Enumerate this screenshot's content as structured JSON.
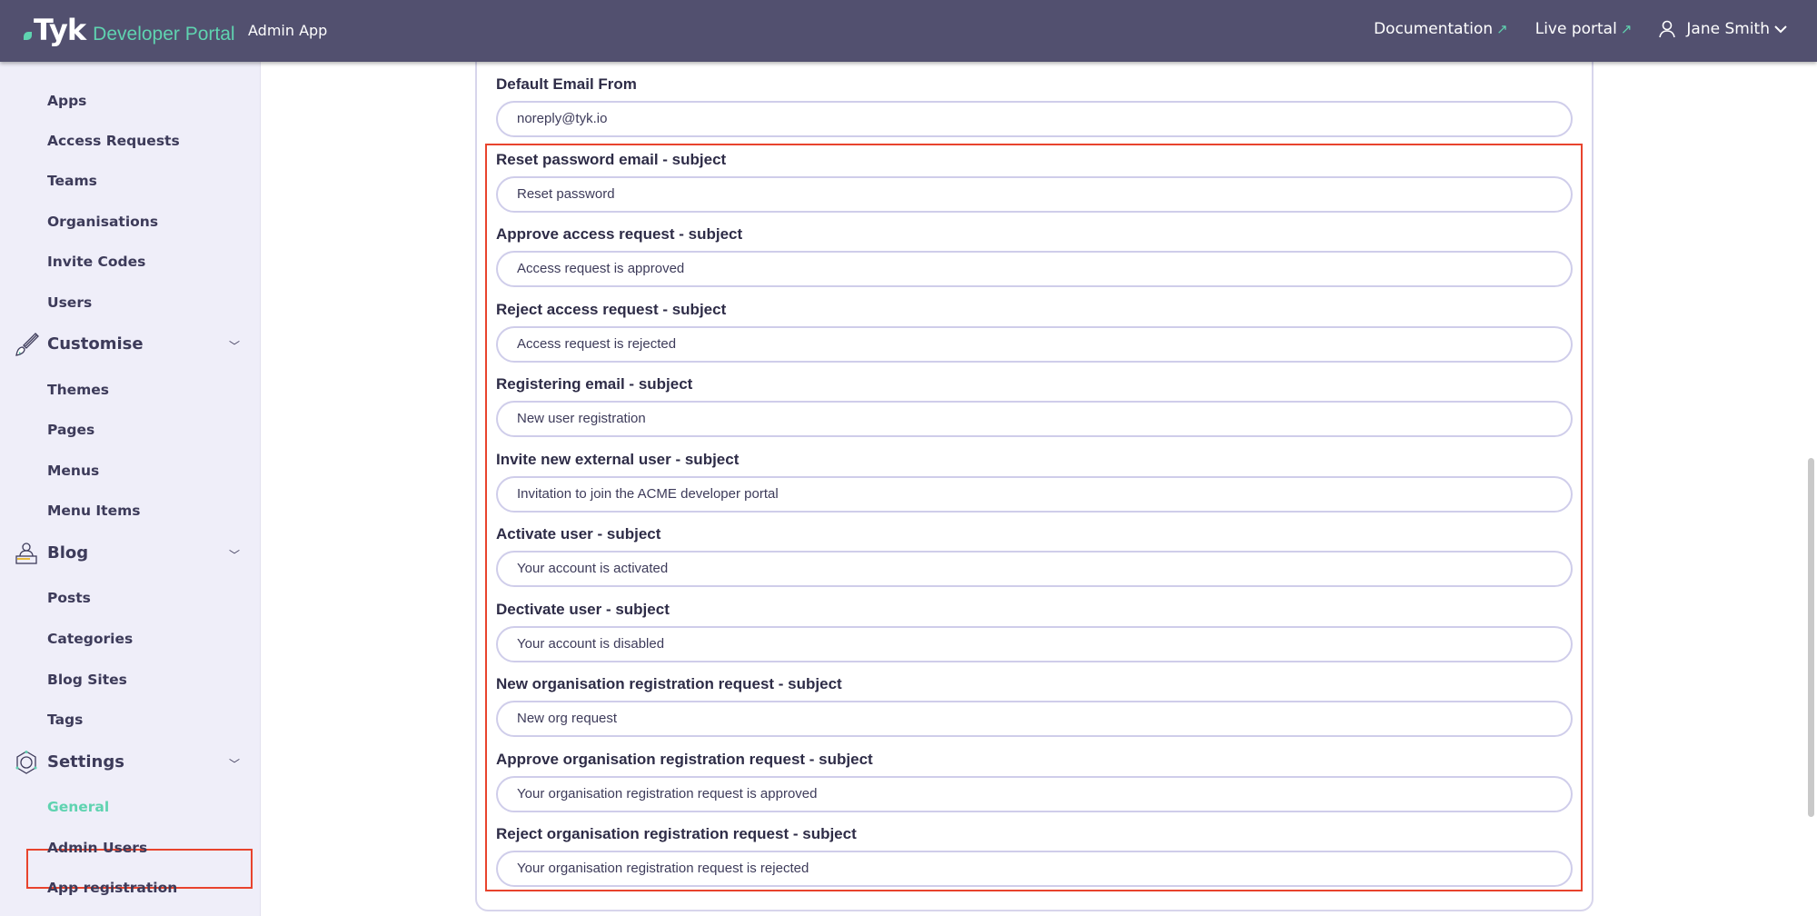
{
  "header": {
    "logo_text": "Tyk",
    "product": "Developer Portal",
    "app": "Admin App",
    "nav": [
      {
        "label": "Documentation",
        "icon": "external-link-icon"
      },
      {
        "label": "Live portal",
        "icon": "external-link-icon"
      }
    ],
    "user": "Jane Smith"
  },
  "sidebar": {
    "items_top": [
      "Apps",
      "Access Requests",
      "Teams",
      "Organisations",
      "Invite Codes",
      "Users"
    ],
    "customise": {
      "label": "Customise",
      "icon": "paintbrush-icon",
      "items": [
        "Themes",
        "Pages",
        "Menus",
        "Menu Items"
      ]
    },
    "blog": {
      "label": "Blog",
      "icon": "writer-icon",
      "items": [
        "Posts",
        "Categories",
        "Blog Sites",
        "Tags"
      ]
    },
    "settings": {
      "label": "Settings",
      "icon": "gear-icon",
      "items": [
        "General",
        "Admin Users",
        "App registration"
      ],
      "selected": "General"
    }
  },
  "form": {
    "fields": [
      {
        "label": "Default Email From",
        "value": "noreply@tyk.io"
      },
      {
        "label": "Reset password email - subject",
        "value": "Reset password"
      },
      {
        "label": "Approve access request - subject",
        "value": "Access request is approved"
      },
      {
        "label": "Reject access request - subject",
        "value": "Access request is rejected"
      },
      {
        "label": "Registering email - subject",
        "value": "New user registration"
      },
      {
        "label": "Invite new external user - subject",
        "value": "Invitation to join the ACME developer portal"
      },
      {
        "label": "Activate user - subject",
        "value": "Your account is activated"
      },
      {
        "label": "Dectivate user - subject",
        "value": "Your account is disabled"
      },
      {
        "label": "New organisation registration request - subject",
        "value": "New org request"
      },
      {
        "label": "Approve organisation registration request - subject",
        "value": "Your organisation registration request is approved"
      },
      {
        "label": "Reject organisation registration request - subject",
        "value": "Your organisation registration request is rejected"
      }
    ]
  },
  "colors": {
    "header": "#52506f",
    "accent": "#5fd3b0",
    "sidebar": "#efeef9",
    "highlight": "#e8432d"
  }
}
